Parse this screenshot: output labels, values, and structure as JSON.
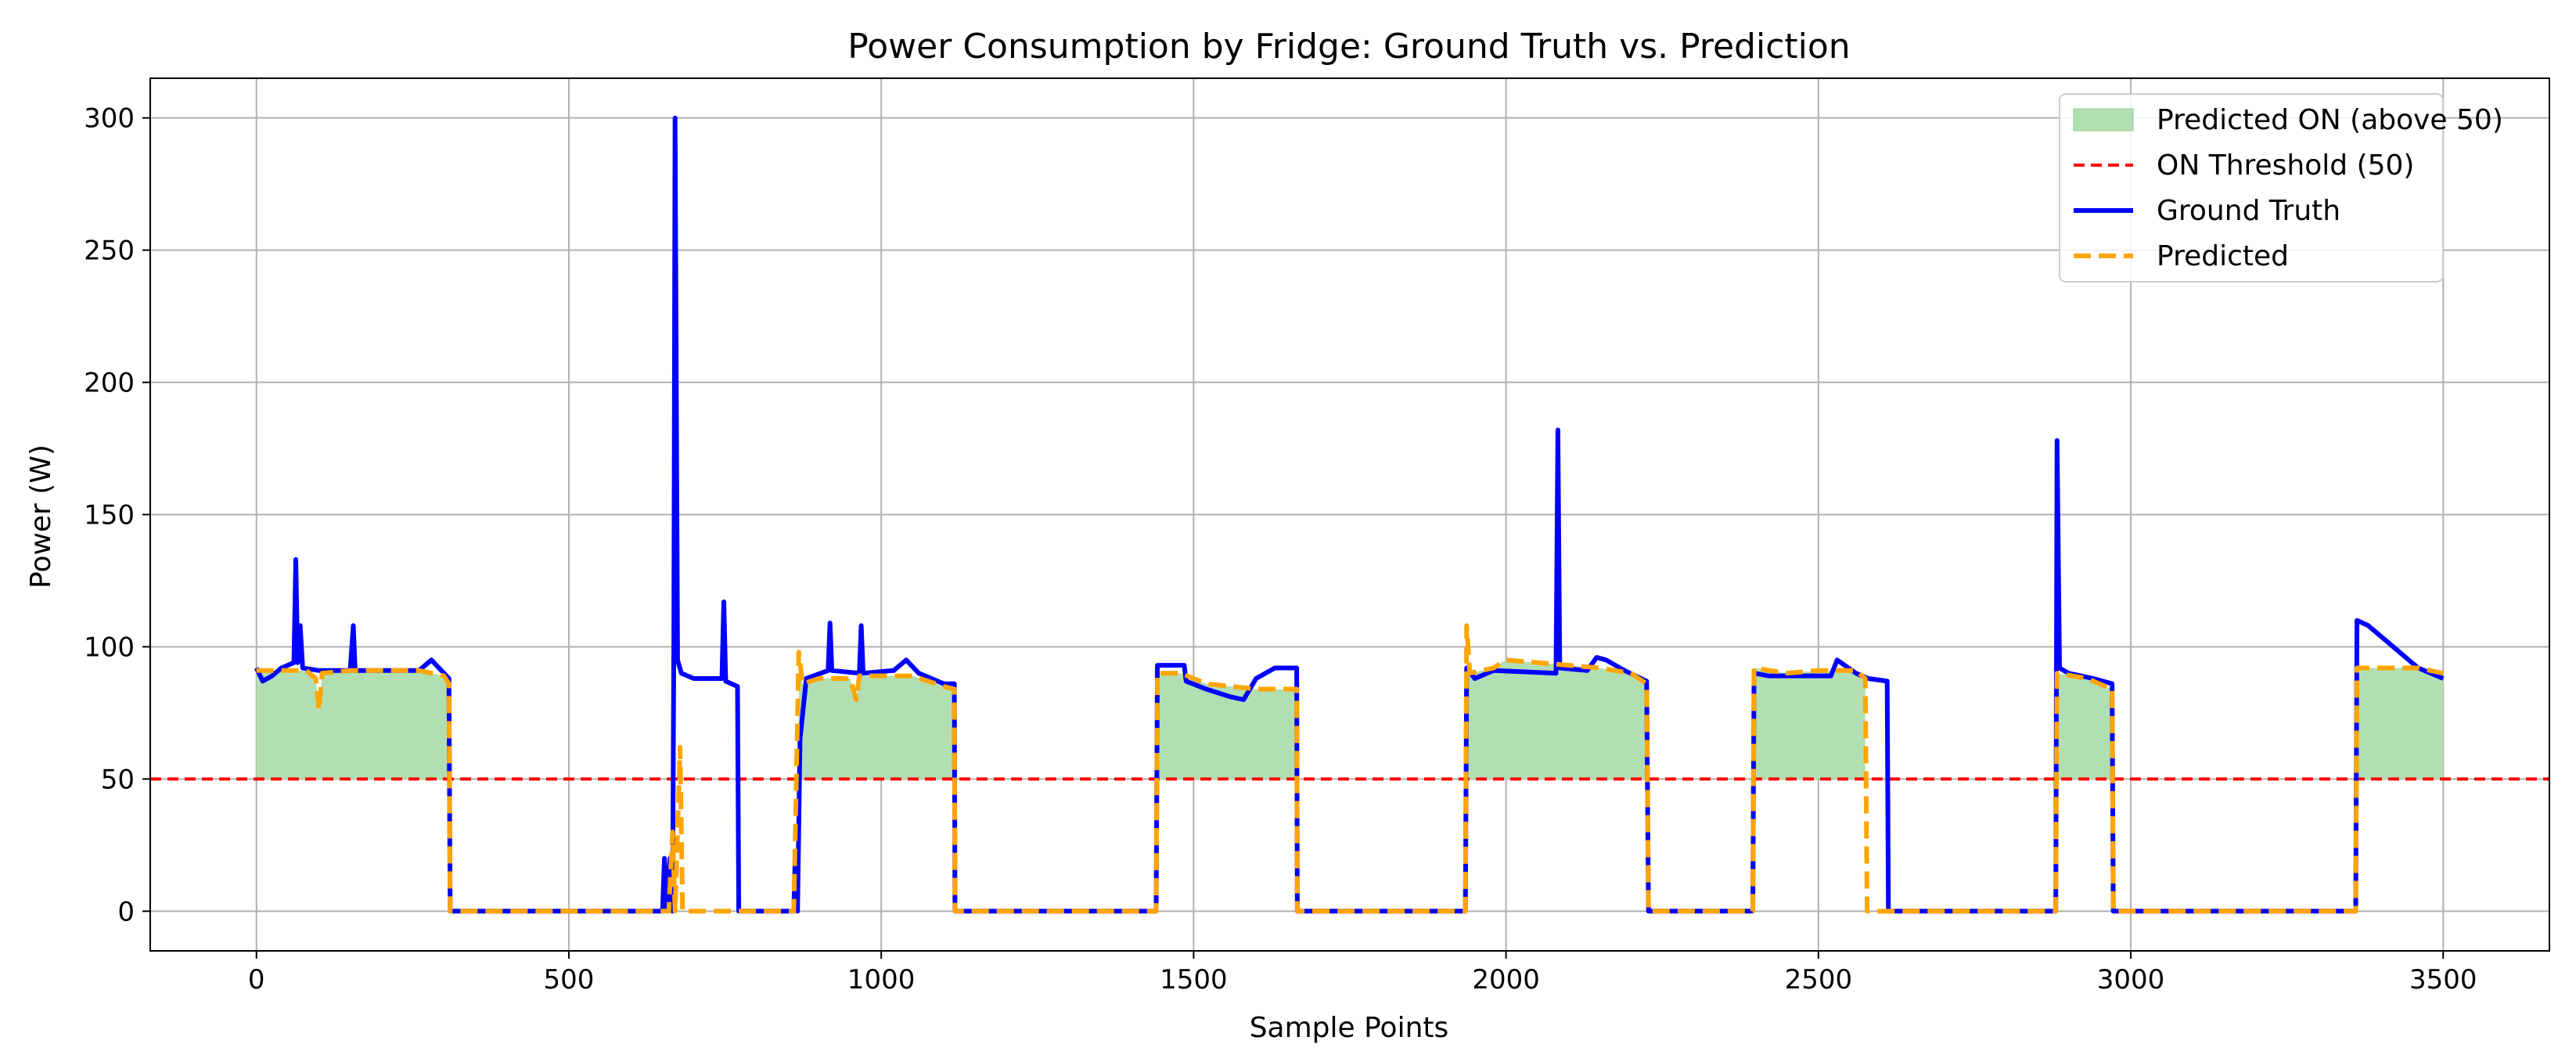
{
  "chart_data": {
    "type": "line",
    "title": "Power Consumption by Fridge: Ground Truth vs. Prediction",
    "xlabel": "Sample Points",
    "ylabel": "Power (W)",
    "xlim": [
      -170,
      3670
    ],
    "ylim": [
      -15,
      315
    ],
    "xticks": [
      0,
      500,
      1000,
      1500,
      2000,
      2500,
      3000,
      3500
    ],
    "yticks": [
      0,
      50,
      100,
      150,
      200,
      250,
      300
    ],
    "grid": true,
    "legend_position": "top-right",
    "threshold": {
      "name": "ON Threshold (50)",
      "value": 50,
      "color": "#ff0000"
    },
    "fill_label": "Predicted ON (above 50)",
    "fill_color": "#b2dfb2",
    "series": [
      {
        "name": "Ground Truth",
        "color": "#0000ff",
        "style": "solid",
        "points": [
          [
            0,
            92
          ],
          [
            10,
            87
          ],
          [
            25,
            89
          ],
          [
            40,
            92
          ],
          [
            60,
            94
          ],
          [
            63,
            133
          ],
          [
            66,
            94
          ],
          [
            70,
            108
          ],
          [
            74,
            92
          ],
          [
            100,
            91
          ],
          [
            150,
            91
          ],
          [
            155,
            108
          ],
          [
            158,
            91
          ],
          [
            200,
            91
          ],
          [
            260,
            91
          ],
          [
            280,
            95
          ],
          [
            300,
            90
          ],
          [
            308,
            88
          ],
          [
            310,
            0
          ],
          [
            650,
            0
          ],
          [
            653,
            20
          ],
          [
            657,
            0
          ],
          [
            662,
            20
          ],
          [
            666,
            0
          ],
          [
            668,
            100
          ],
          [
            670,
            300
          ],
          [
            674,
            95
          ],
          [
            680,
            90
          ],
          [
            700,
            88
          ],
          [
            745,
            88
          ],
          [
            748,
            117
          ],
          [
            751,
            87
          ],
          [
            770,
            85
          ],
          [
            772,
            0
          ],
          [
            860,
            0
          ],
          [
            862,
            18
          ],
          [
            866,
            0
          ],
          [
            870,
            65
          ],
          [
            880,
            88
          ],
          [
            915,
            91
          ],
          [
            918,
            109
          ],
          [
            921,
            91
          ],
          [
            965,
            90
          ],
          [
            968,
            108
          ],
          [
            971,
            90
          ],
          [
            1020,
            91
          ],
          [
            1040,
            95
          ],
          [
            1060,
            90
          ],
          [
            1100,
            86
          ],
          [
            1117,
            86
          ],
          [
            1118,
            0
          ],
          [
            1440,
            0
          ],
          [
            1442,
            93
          ],
          [
            1485,
            93
          ],
          [
            1488,
            87
          ],
          [
            1520,
            84
          ],
          [
            1560,
            81
          ],
          [
            1580,
            80
          ],
          [
            1600,
            88
          ],
          [
            1630,
            92
          ],
          [
            1665,
            92
          ],
          [
            1666,
            0
          ],
          [
            1935,
            0
          ],
          [
            1937,
            92
          ],
          [
            1950,
            88
          ],
          [
            1980,
            91
          ],
          [
            2080,
            90
          ],
          [
            2083,
            182
          ],
          [
            2086,
            92
          ],
          [
            2130,
            91
          ],
          [
            2145,
            96
          ],
          [
            2160,
            95
          ],
          [
            2190,
            91
          ],
          [
            2225,
            87
          ],
          [
            2228,
            0
          ],
          [
            2395,
            0
          ],
          [
            2397,
            90
          ],
          [
            2420,
            89
          ],
          [
            2480,
            89
          ],
          [
            2520,
            89
          ],
          [
            2530,
            95
          ],
          [
            2560,
            90
          ],
          [
            2580,
            88
          ],
          [
            2610,
            87
          ],
          [
            2612,
            0
          ],
          [
            2880,
            0
          ],
          [
            2882,
            178
          ],
          [
            2886,
            92
          ],
          [
            2900,
            90
          ],
          [
            2940,
            88
          ],
          [
            2970,
            86
          ],
          [
            2972,
            0
          ],
          [
            3360,
            0
          ],
          [
            3362,
            110
          ],
          [
            3380,
            108
          ],
          [
            3420,
            100
          ],
          [
            3460,
            92
          ],
          [
            3500,
            88
          ]
        ]
      },
      {
        "name": "Predicted",
        "color": "#ffa500",
        "style": "dashed",
        "points": [
          [
            0,
            91
          ],
          [
            40,
            91
          ],
          [
            80,
            91
          ],
          [
            95,
            88
          ],
          [
            100,
            76
          ],
          [
            105,
            90
          ],
          [
            150,
            91
          ],
          [
            200,
            91
          ],
          [
            260,
            91
          ],
          [
            300,
            89
          ],
          [
            308,
            86
          ],
          [
            310,
            0
          ],
          [
            660,
            0
          ],
          [
            666,
            30
          ],
          [
            670,
            0
          ],
          [
            678,
            62
          ],
          [
            682,
            0
          ],
          [
            860,
            0
          ],
          [
            868,
            98
          ],
          [
            874,
            86
          ],
          [
            900,
            88
          ],
          [
            950,
            88
          ],
          [
            960,
            80
          ],
          [
            965,
            89
          ],
          [
            1050,
            89
          ],
          [
            1100,
            85
          ],
          [
            1117,
            84
          ],
          [
            1118,
            0
          ],
          [
            1440,
            0
          ],
          [
            1442,
            90
          ],
          [
            1480,
            90
          ],
          [
            1520,
            86
          ],
          [
            1560,
            85
          ],
          [
            1600,
            84
          ],
          [
            1665,
            84
          ],
          [
            1666,
            0
          ],
          [
            1935,
            0
          ],
          [
            1937,
            108
          ],
          [
            1942,
            90
          ],
          [
            1980,
            92
          ],
          [
            2000,
            95
          ],
          [
            2050,
            94
          ],
          [
            2100,
            93
          ],
          [
            2150,
            92
          ],
          [
            2200,
            90
          ],
          [
            2225,
            86
          ],
          [
            2228,
            0
          ],
          [
            2395,
            0
          ],
          [
            2397,
            92
          ],
          [
            2450,
            90
          ],
          [
            2500,
            91
          ],
          [
            2560,
            91
          ],
          [
            2575,
            88
          ],
          [
            2578,
            0
          ],
          [
            2880,
            0
          ],
          [
            2882,
            90
          ],
          [
            2930,
            88
          ],
          [
            2970,
            84
          ],
          [
            2972,
            0
          ],
          [
            3360,
            0
          ],
          [
            3362,
            92
          ],
          [
            3420,
            92
          ],
          [
            3460,
            92
          ],
          [
            3500,
            90
          ]
        ]
      }
    ]
  }
}
